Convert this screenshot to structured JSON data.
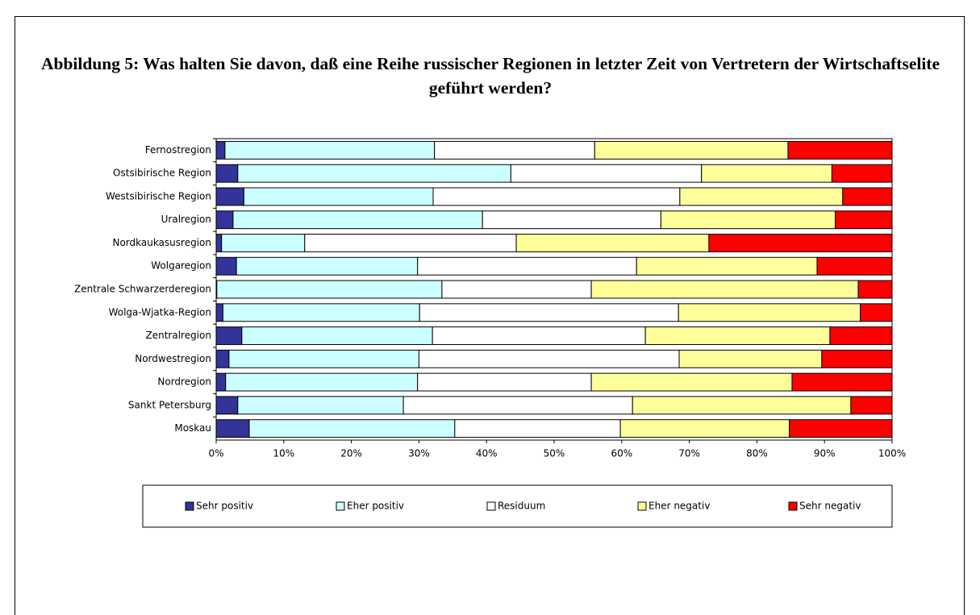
{
  "chart_data": {
    "type": "stacked-barh",
    "title": "Abbildung 5: Was halten Sie davon, daß eine Reihe russischer Regionen in letzter Zeit von Vertretern der Wirtschaftselite geführt werden?",
    "categories": [
      "Fernostregion",
      "Ostsibirische Region",
      "Westsibirische Region",
      "Uralregion",
      "Nordkaukasusregion",
      "Wolgaregion",
      "Zentrale Schwarzerderegion",
      "Wolga-Wjatka-Region",
      "Zentralregion",
      "Nordwestregion",
      "Nordregion",
      "Sankt Petersburg",
      "Moskau"
    ],
    "series": [
      {
        "name": "Sehr positiv",
        "color": "#333399",
        "values": [
          1.3,
          3.2,
          4.1,
          2.5,
          0.8,
          3.0,
          0.1,
          1.0,
          3.8,
          1.9,
          1.4,
          3.2,
          4.9
        ]
      },
      {
        "name": "Eher positiv",
        "color": "#ccffff",
        "values": [
          31.0,
          40.4,
          28.0,
          36.9,
          12.3,
          26.8,
          33.3,
          29.1,
          28.2,
          28.1,
          28.4,
          24.5,
          30.4
        ]
      },
      {
        "name": "Residuum",
        "color": "#ffffff",
        "values": [
          23.7,
          28.2,
          36.5,
          26.4,
          31.3,
          32.4,
          22.1,
          38.3,
          31.5,
          38.5,
          25.7,
          33.9,
          24.5
        ]
      },
      {
        "name": "Eher negativ",
        "color": "#ffff99",
        "values": [
          28.6,
          19.3,
          24.1,
          25.8,
          28.5,
          26.7,
          39.5,
          26.9,
          27.3,
          21.1,
          29.7,
          32.3,
          25.0
        ]
      },
      {
        "name": "Sehr negativ",
        "color": "#ff0000",
        "values": [
          15.4,
          8.9,
          7.3,
          8.4,
          27.1,
          11.1,
          5.0,
          4.7,
          9.2,
          10.4,
          14.8,
          6.1,
          15.2
        ]
      }
    ],
    "xlim": [
      0,
      100
    ],
    "xticks": [
      {
        "value": 0,
        "label": "0%"
      },
      {
        "value": 10,
        "label": "10%"
      },
      {
        "value": 20,
        "label": "20%"
      },
      {
        "value": 30,
        "label": "30%"
      },
      {
        "value": 40,
        "label": "40%"
      },
      {
        "value": 50,
        "label": "50%"
      },
      {
        "value": 60,
        "label": "60%"
      },
      {
        "value": 70,
        "label": "70%"
      },
      {
        "value": 80,
        "label": "80%"
      },
      {
        "value": 90,
        "label": "90%"
      },
      {
        "value": 100,
        "label": "100%"
      }
    ],
    "legend": "bottom"
  }
}
